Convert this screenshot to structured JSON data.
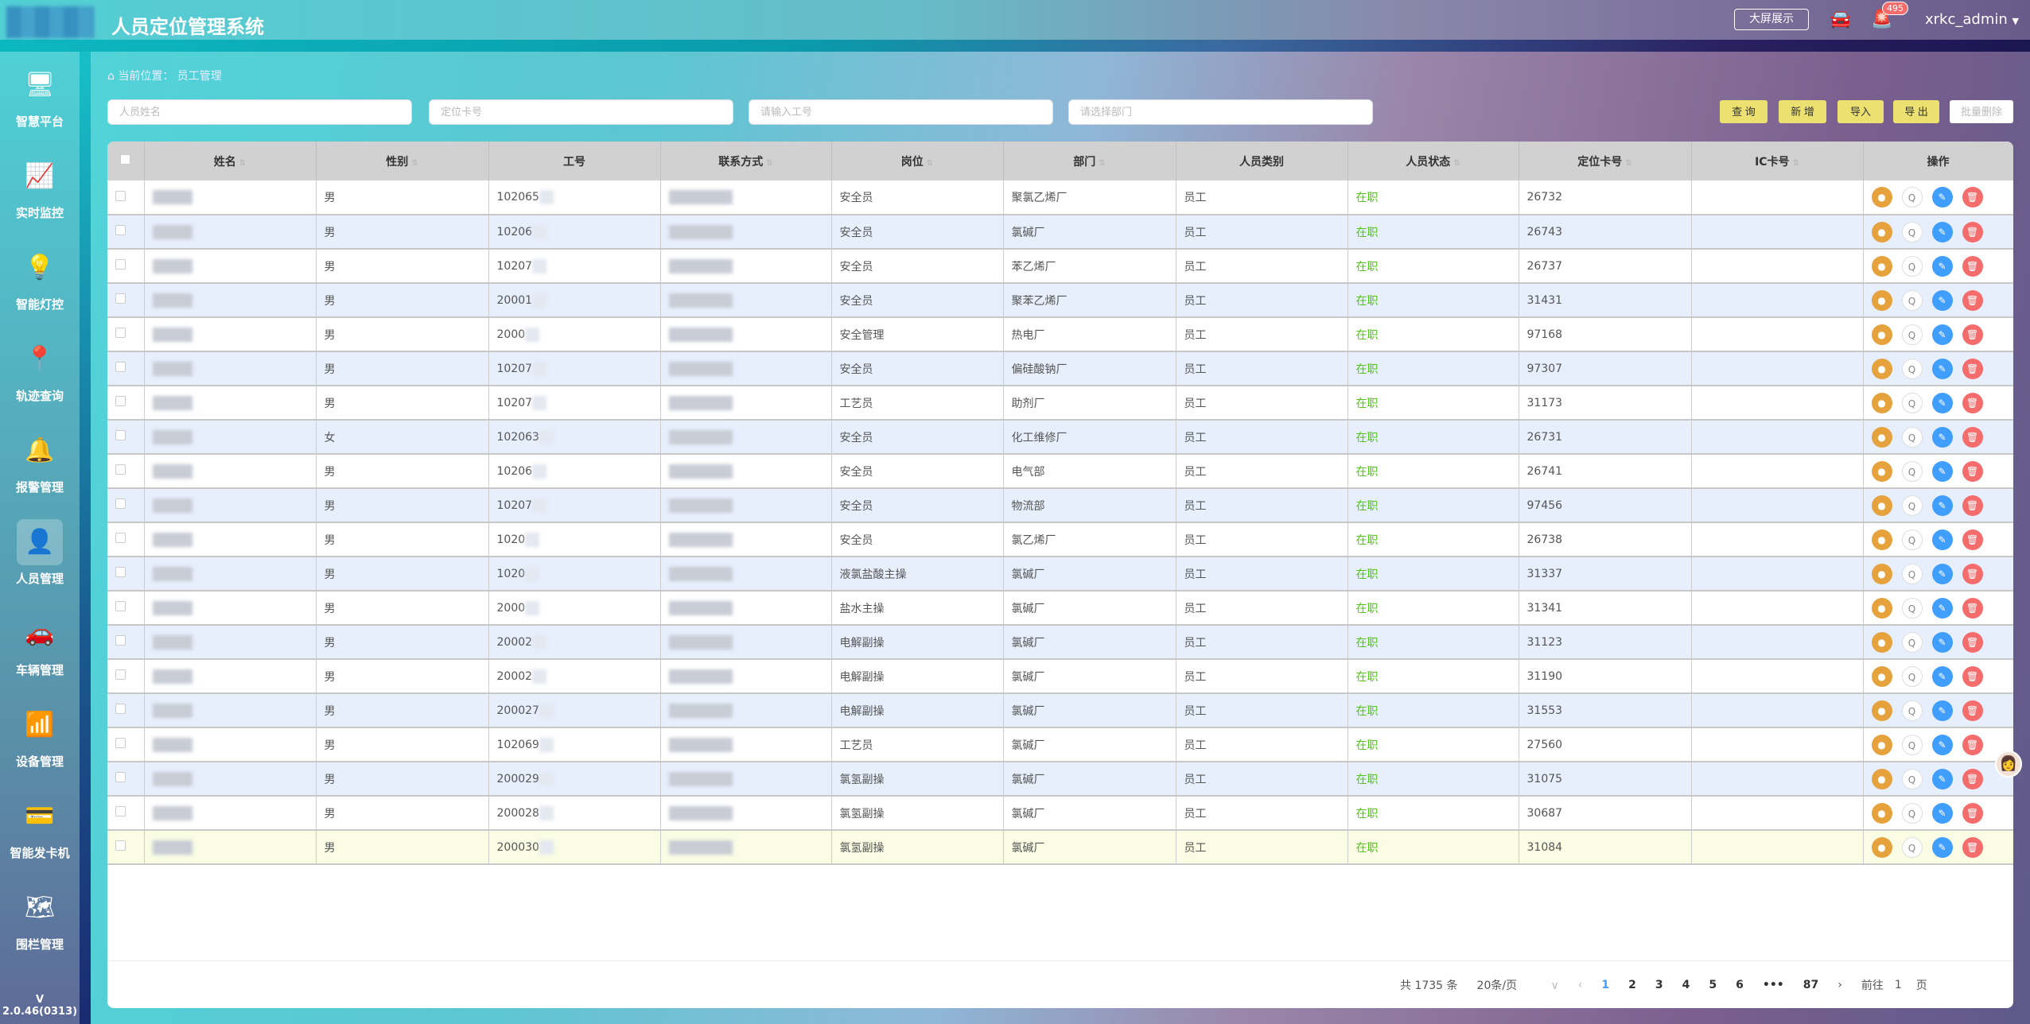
{
  "header": {
    "title": "人员定位管理系统",
    "big_screen": "大屏展示",
    "alarm_count": "495",
    "user": "xrkc_admin"
  },
  "sidebar": {
    "items": [
      {
        "label": "智慧平台",
        "icon": "monitor-chart-icon"
      },
      {
        "label": "实时监控",
        "icon": "monitor-pulse-icon"
      },
      {
        "label": "智能灯控",
        "icon": "lamp-icon"
      },
      {
        "label": "轨迹查询",
        "icon": "track-icon"
      },
      {
        "label": "报警管理",
        "icon": "alarm-icon"
      },
      {
        "label": "人员管理",
        "icon": "user-list-icon",
        "active": true
      },
      {
        "label": "车辆管理",
        "icon": "car-gear-icon"
      },
      {
        "label": "设备管理",
        "icon": "router-icon"
      },
      {
        "label": "智能发卡机",
        "icon": "card-machine-icon"
      },
      {
        "label": "围栏管理",
        "icon": "map-pin-icon"
      }
    ],
    "version": "V 2.0.46(0313)"
  },
  "breadcrumb": {
    "prefix": "当前位置：",
    "current": "员工管理"
  },
  "filters": {
    "name_placeholder": "人员姓名",
    "card_placeholder": "定位卡号",
    "id_placeholder": "请输入工号",
    "dept_placeholder": "请选择部门"
  },
  "toolbar": {
    "query": "查 询",
    "add": "新 增",
    "import": "导入",
    "export": "导 出",
    "batch_delete": "批量删除"
  },
  "table": {
    "columns": [
      "姓名",
      "性别",
      "工号",
      "联系方式",
      "岗位",
      "部门",
      "人员类别",
      "人员状态",
      "定位卡号",
      "IC卡号",
      "操作"
    ],
    "rows": [
      [
        "男",
        "102065",
        "安全员",
        "聚氯乙烯厂",
        "员工",
        "在职",
        "26732"
      ],
      [
        "男",
        "10206",
        "安全员",
        "氯碱厂",
        "员工",
        "在职",
        "26743"
      ],
      [
        "男",
        "10207",
        "安全员",
        "苯乙烯厂",
        "员工",
        "在职",
        "26737"
      ],
      [
        "男",
        "20001",
        "安全员",
        "聚苯乙烯厂",
        "员工",
        "在职",
        "31431"
      ],
      [
        "男",
        "2000",
        "安全管理",
        "热电厂",
        "员工",
        "在职",
        "97168"
      ],
      [
        "男",
        "10207",
        "安全员",
        "偏硅酸钠厂",
        "员工",
        "在职",
        "97307"
      ],
      [
        "男",
        "10207",
        "工艺员",
        "助剂厂",
        "员工",
        "在职",
        "31173"
      ],
      [
        "女",
        "102063",
        "安全员",
        "化工维修厂",
        "员工",
        "在职",
        "26731"
      ],
      [
        "男",
        "10206",
        "安全员",
        "电气部",
        "员工",
        "在职",
        "26741"
      ],
      [
        "男",
        "10207",
        "安全员",
        "物流部",
        "员工",
        "在职",
        "97456"
      ],
      [
        "男",
        "1020",
        "安全员",
        "氯乙烯厂",
        "员工",
        "在职",
        "26738"
      ],
      [
        "男",
        "1020",
        "液氯盐酸主操",
        "氯碱厂",
        "员工",
        "在职",
        "31337"
      ],
      [
        "男",
        "2000",
        "盐水主操",
        "氯碱厂",
        "员工",
        "在职",
        "31341"
      ],
      [
        "男",
        "20002",
        "电解副操",
        "氯碱厂",
        "员工",
        "在职",
        "31123"
      ],
      [
        "男",
        "20002",
        "电解副操",
        "氯碱厂",
        "员工",
        "在职",
        "31190"
      ],
      [
        "男",
        "200027",
        "电解副操",
        "氯碱厂",
        "员工",
        "在职",
        "31553"
      ],
      [
        "男",
        "102069",
        "工艺员",
        "氯碱厂",
        "员工",
        "在职",
        "27560"
      ],
      [
        "男",
        "200029",
        "氯氢副操",
        "氯碱厂",
        "员工",
        "在职",
        "31075"
      ],
      [
        "男",
        "200028",
        "氯氢副操",
        "氯碱厂",
        "员工",
        "在职",
        "30687"
      ],
      [
        "男",
        "200030",
        "氯氢副操",
        "氯碱厂",
        "员工",
        "在职",
        "31084"
      ]
    ],
    "sortable": [
      true,
      true,
      false,
      true,
      true,
      true,
      false,
      true,
      true,
      true,
      false
    ]
  },
  "pagination": {
    "total": "共 1735 条",
    "page_size": "20条/页",
    "pages": [
      "1",
      "2",
      "3",
      "4",
      "5",
      "6",
      "•••",
      "87"
    ],
    "current": "1",
    "goto_label": "前往",
    "goto_value": "1",
    "goto_suffix": "页"
  },
  "colors": {
    "accent_button": "#ebe070",
    "status_active": "#52c41a",
    "row_alt": "#e7effd",
    "row_highlight": "#fafde4"
  }
}
